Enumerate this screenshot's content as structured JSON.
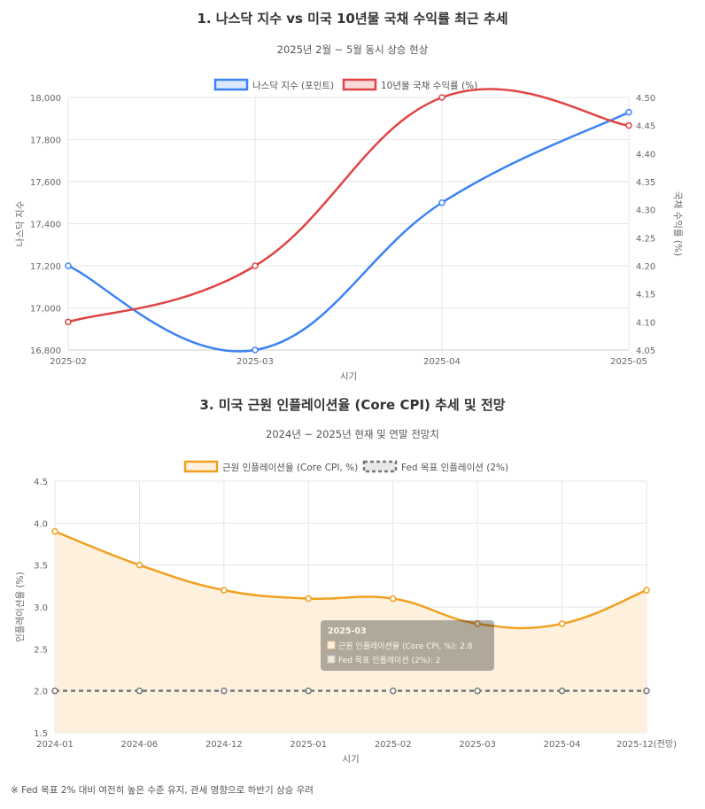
{
  "chart1": {
    "title": "1. 나스닥 지수 vs 미국 10년물 국채 수익률 최근 추세",
    "subtitle": "2025년 2월 ~ 5월 동시 상승 현상",
    "chart_data": {
      "type": "line",
      "categories": [
        "2025-02",
        "2025-03",
        "2025-04",
        "2025-05"
      ],
      "series": [
        {
          "name": "나스닥 지수 (포인트)",
          "values": [
            17200,
            16800,
            17500,
            17930
          ],
          "axis": "left",
          "color": "#3b82f6"
        },
        {
          "name": "10년물 국채 수익률 (%)",
          "values": [
            4.1,
            4.2,
            4.5,
            4.45
          ],
          "axis": "right",
          "color": "#e04444"
        }
      ],
      "xlabel": "시기",
      "ylabel": "나스닥 지수",
      "y2label": "국채 수익률 (%)",
      "ylim": [
        16800,
        18000
      ],
      "y2lim": [
        4.05,
        4.5
      ],
      "yticks": [
        "16,800",
        "17,000",
        "17,200",
        "17,400",
        "17,600",
        "17,800",
        "18,000"
      ],
      "y2ticks": [
        "4.05",
        "4.10",
        "4.15",
        "4.20",
        "4.25",
        "4.30",
        "4.35",
        "4.40",
        "4.45",
        "4.50"
      ],
      "grid": true,
      "legend": "top-center"
    }
  },
  "chart2": {
    "title": "3. 미국 근원 인플레이션율 (Core CPI) 추세 및 전망",
    "subtitle": "2024년 ~ 2025년 현재 및 연말 전망치",
    "chart_data": {
      "type": "area",
      "categories": [
        "2024-01",
        "2024-06",
        "2024-12",
        "2025-01",
        "2025-02",
        "2025-03",
        "2025-04",
        "2025-12(전망)"
      ],
      "series": [
        {
          "name": "근원 인플레이션율 (Core CPI, %)",
          "values": [
            3.9,
            3.5,
            3.2,
            3.1,
            3.1,
            2.8,
            2.8,
            3.2
          ],
          "color": "#f0a020",
          "fill": "#fdf1de"
        },
        {
          "name": "Fed 목표 인플레이션 (2%)",
          "values": [
            2,
            2,
            2,
            2,
            2,
            2,
            2,
            2
          ],
          "color": "#777777",
          "dashed": true
        }
      ],
      "xlabel": "시기",
      "ylabel": "인플레이션율 (%)",
      "ylim": [
        1.5,
        4.5
      ],
      "yticks": [
        "1.5",
        "2.0",
        "2.5",
        "3.0",
        "3.5",
        "4.0",
        "4.5"
      ],
      "grid": true,
      "legend": "top-center"
    },
    "tooltip": {
      "title": "2025-03",
      "line1": "근원 인플레이션율 (Core CPI, %): 2.8",
      "line2": "Fed 목표 인플레이션 (2%): 2"
    }
  },
  "footnote": "※ Fed 목표 2% 대비 여전히 높은 수준 유지, 관세 영향으로 하반기 상승 우려"
}
